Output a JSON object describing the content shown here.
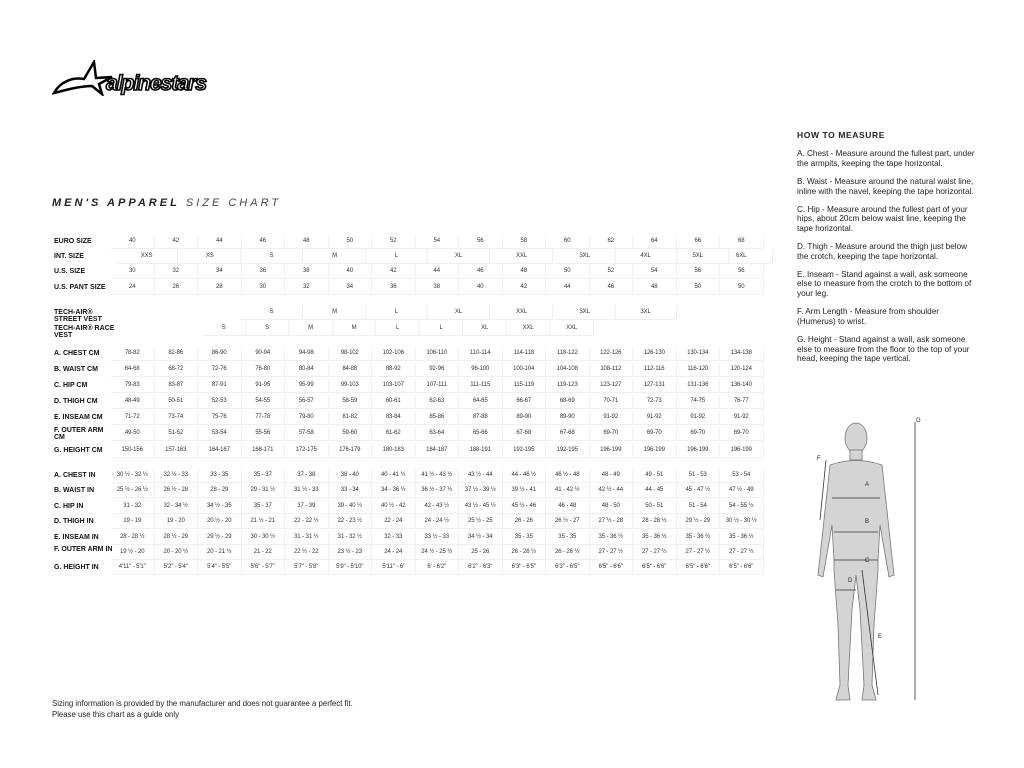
{
  "brand": {
    "logo_text": "alpinestars"
  },
  "title": {
    "bold": "MEN'S APPAREL",
    "light": "SIZE CHART"
  },
  "size_rows": [
    {
      "label": "EURO SIZE",
      "values": [
        "40",
        "42",
        "44",
        "46",
        "48",
        "50",
        "52",
        "54",
        "56",
        "58",
        "60",
        "62",
        "64",
        "66",
        "68"
      ]
    },
    {
      "label": "INT. SIZE",
      "values": [
        "XXS",
        "XS",
        "S",
        "M",
        "L",
        "XL",
        "XXL",
        "3XL",
        "4XL",
        "5XL",
        "6XL"
      ]
    },
    {
      "label": "U.S. SIZE",
      "values": [
        "30",
        "32",
        "34",
        "36",
        "38",
        "40",
        "42",
        "44",
        "46",
        "48",
        "50",
        "52",
        "54",
        "56",
        "56"
      ]
    },
    {
      "label": "U.S. PANT SIZE",
      "values": [
        "24",
        "26",
        "28",
        "30",
        "32",
        "34",
        "36",
        "38",
        "40",
        "42",
        "44",
        "46",
        "48",
        "50",
        "50"
      ]
    },
    {
      "label": "TECH-AIR® STREET VEST",
      "values": [
        "S",
        "M",
        "L",
        "XL",
        "XXL",
        "3XL",
        "3XL"
      ]
    },
    {
      "label": "TECH-AIR® RACE VEST",
      "values": [
        "S",
        "S",
        "M",
        "M",
        "L",
        "L",
        "XL",
        "XXL",
        "XXL"
      ]
    }
  ],
  "cm_rows": [
    {
      "label": "A. CHEST CM",
      "values": [
        "78-82",
        "82-86",
        "86-90",
        "90-94",
        "94-98",
        "98-102",
        "102-106",
        "106-110",
        "110-114",
        "114-118",
        "118-122",
        "122-126",
        "126-130",
        "130-134",
        "134-138"
      ]
    },
    {
      "label": "B. WAIST CM",
      "values": [
        "64-68",
        "68-72",
        "72-76",
        "76-80",
        "80-84",
        "84-88",
        "88-92",
        "92-96",
        "96-100",
        "100-104",
        "104-108",
        "108-112",
        "112-116",
        "116-120",
        "120-124"
      ]
    },
    {
      "label": "C. HIP CM",
      "values": [
        "79-83",
        "83-87",
        "87-91",
        "91-95",
        "95-99",
        "99-103",
        "103-107",
        "107-111",
        "111-115",
        "115-119",
        "119-123",
        "123-127",
        "127-131",
        "131-136",
        "136-140"
      ]
    },
    {
      "label": "D. THIGH CM",
      "values": [
        "48-49",
        "50-51",
        "52-53",
        "54-55",
        "56-57",
        "58-59",
        "60-61",
        "62-63",
        "64-65",
        "66-67",
        "68-69",
        "70-71",
        "72-73",
        "74-75",
        "76-77"
      ]
    },
    {
      "label": "E. INSEAM CM",
      "values": [
        "71-72",
        "73-74",
        "75-76",
        "77-78",
        "79-80",
        "81-82",
        "83-84",
        "85-86",
        "87-88",
        "89-90",
        "89-90",
        "91-92",
        "91-92",
        "91-92",
        "91-92"
      ]
    },
    {
      "label": "F. OUTER ARM CM",
      "values": [
        "49-50",
        "51-52",
        "53-54",
        "55-56",
        "57-58",
        "59-60",
        "61-62",
        "63-64",
        "65-66",
        "67-68",
        "67-68",
        "69-70",
        "69-70",
        "69-70",
        "69-70"
      ]
    },
    {
      "label": "G. HEIGHT CM",
      "values": [
        "150-156",
        "157-163",
        "164-167",
        "168-171",
        "172-175",
        "176-179",
        "180-183",
        "184-187",
        "188-191",
        "192-195",
        "192-195",
        "196-199",
        "196-199",
        "196-199",
        "196-199"
      ]
    }
  ],
  "in_rows": [
    {
      "label": "A. CHEST IN",
      "values": [
        "30 ½ - 32 ½",
        "32 ½ - 33",
        "33 - 35",
        "35 - 37",
        "37 - 38",
        "38 - 40",
        "40 - 41 ½",
        "41 ½ - 43 ½",
        "43 ½ - 44",
        "44 - 46 ½",
        "46 ½ - 48",
        "48 - 49",
        "49 - 51",
        "51 - 53",
        "53 - 54"
      ]
    },
    {
      "label": "B. WAIST IN",
      "values": [
        "25 ½ - 26 ½",
        "26 ½ - 28",
        "28 - 29",
        "29 - 31 ½",
        "31 ½ - 33",
        "33 - 34",
        "34 - 36 ½",
        "36 ½ - 37 ½",
        "37 ½ - 39 ½",
        "39 ½ - 41",
        "41 - 42 ½",
        "42 ½ - 44",
        "44 - 45",
        "45 - 47 ½",
        "47 ½ - 49"
      ]
    },
    {
      "label": "C. HIP IN",
      "values": [
        "31 - 32",
        "32 - 34 ½",
        "34 ½ - 35",
        "35 - 37",
        "37 - 39",
        "39 - 40 ½",
        "40 ½ - 42",
        "42 - 43 ½",
        "43 ½ - 45 ½",
        "45 ½ - 46",
        "46 - 48",
        "48 - 50",
        "50 - 51",
        "51 - 54",
        "54 - 55 ½"
      ]
    },
    {
      "label": "D. THIGH IN",
      "values": [
        "19 - 19",
        "19 - 20",
        "20 ½ - 20",
        "21 ½ - 21",
        "22 - 22 ½",
        "22 - 23 ½",
        "22 - 24",
        "24 - 24 ½",
        "25 ½ - 25",
        "26 - 26",
        "26 ½ - 27",
        "27 ½ - 28",
        "28 - 28 ½",
        "29 ½ - 29",
        "30 ½ - 30 ½"
      ]
    },
    {
      "label": "E. INSEAM IN",
      "values": [
        "28 - 28 ½",
        "28 ½ - 29",
        "29 ½ - 29",
        "30 - 30 ½",
        "31 - 31 ½",
        "31 - 32 ½",
        "32 - 33",
        "33 ½ - 33",
        "34 ½ - 34",
        "35 - 35",
        "35 - 35",
        "35 - 36 ½",
        "35 - 36 ½",
        "35 - 36 ½",
        "35 - 36 ½"
      ]
    },
    {
      "label": "F. OUTER ARM IN",
      "values": [
        "19 ½ - 20",
        "20 - 20 ½",
        "20 - 21 ½",
        "21 - 22",
        "22 ½ - 22",
        "23 ½ - 23",
        "24 - 24",
        "24 ½ - 25 ½",
        "25 - 26",
        "26 - 26 ½",
        "26 - 26 ½",
        "27 - 27 ½",
        "27 - 27 ½",
        "27 - 27 ½",
        "27 - 27 ½"
      ]
    },
    {
      "label": "G. HEIGHT IN",
      "values": [
        "4'11\" - 5'1\"",
        "5'2\" - 5'4\"",
        "5'4\" - 5'5\"",
        "5'6\" - 5'7\"",
        "5'7\" - 5'8\"",
        "5'9\" - 5'10\"",
        "5'11\" - 6'",
        "6' - 6'2\"",
        "6'2\" - 6'3\"",
        "6'3\" - 6'5\"",
        "6'3\" - 6'5\"",
        "6'5\" - 6'6\"",
        "6'5\" - 6'6\"",
        "6'5\" - 6'6\"",
        "6'5\" - 6'6\""
      ]
    }
  ],
  "how_to_measure": {
    "title": "HOW TO MEASURE",
    "items": [
      "A. Chest - Measure around the fullest part, under the armpits, keeping the tape horizontal.",
      "B. Waist - Measure around the natural waist line, inline with the navel, keeping the tape horizontal.",
      "C. Hip - Measure around the fullest part of your hips, about 20cm below waist line, keeping the tape horizontal.",
      "D. Thigh - Measure around the thigh just below the crotch, keeping the tape horizontal.",
      "E. Inseam - Stand against a wall, ask someone else to measure from the crotch to the bottom of your leg.",
      "F. Arm Length - Measure from shoulder (Humerus) to wrist.",
      "G. Height - Stand against a wall, ask someone else to measure from the floor to the top of your head, keeping the tape vertical."
    ]
  },
  "figure_labels": {
    "a": "A",
    "b": "B",
    "c": "C",
    "d": "D",
    "e": "E",
    "f": "F",
    "g": "G"
  },
  "disclaimer": {
    "line1": "Sizing information is provided by the manufacturer and does not guarantee a perfect fit.",
    "line2": "Please use this chart as a guide only"
  }
}
